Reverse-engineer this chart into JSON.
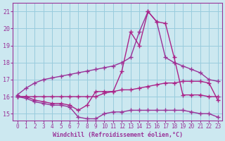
{
  "xlabel": "Windchill (Refroidissement éolien,°C)",
  "bg_color": "#cce8f0",
  "grid_color": "#99ccdd",
  "line_color": "#993399",
  "xmin": -0.5,
  "xmax": 23.5,
  "ymin": 14.6,
  "ymax": 21.5,
  "yticks": [
    15,
    16,
    17,
    18,
    19,
    20,
    21
  ],
  "xticks": [
    0,
    1,
    2,
    3,
    4,
    5,
    6,
    7,
    8,
    9,
    10,
    11,
    12,
    13,
    14,
    15,
    16,
    17,
    18,
    19,
    20,
    21,
    22,
    23
  ],
  "series": [
    {
      "x": [
        0,
        1,
        2,
        3,
        4,
        5,
        6,
        7,
        8,
        9,
        10,
        11,
        12,
        13,
        14,
        15,
        16,
        17,
        18,
        19,
        20,
        21,
        22,
        23
      ],
      "y": [
        16.1,
        16.5,
        16.8,
        17.0,
        17.1,
        17.2,
        17.3,
        17.4,
        17.5,
        17.6,
        17.7,
        17.8,
        18.0,
        18.3,
        19.8,
        21.0,
        20.4,
        18.3,
        18.0,
        17.8,
        17.6,
        17.4,
        17.0,
        16.9
      ],
      "color": "#993399",
      "marker": "+",
      "markersize": 5,
      "linewidth": 1.0
    },
    {
      "x": [
        0,
        1,
        2,
        3,
        4,
        5,
        6,
        7,
        8,
        9,
        10,
        11,
        12,
        13,
        14,
        15,
        16,
        17,
        18,
        19,
        20,
        21,
        22,
        23
      ],
      "y": [
        16.0,
        16.0,
        16.0,
        16.0,
        16.0,
        16.0,
        16.0,
        16.0,
        16.0,
        16.0,
        16.2,
        16.3,
        17.5,
        19.8,
        19.0,
        21.0,
        20.4,
        20.3,
        18.3,
        16.1,
        16.1,
        16.1,
        16.0,
        16.0
      ],
      "color": "#aa2288",
      "marker": "+",
      "markersize": 5,
      "linewidth": 1.0
    },
    {
      "x": [
        0,
        1,
        2,
        3,
        4,
        5,
        6,
        7,
        8,
        9,
        10,
        11,
        12,
        13,
        14,
        15,
        16,
        17,
        18,
        19,
        20,
        21,
        22,
        23
      ],
      "y": [
        16.0,
        16.0,
        15.8,
        15.7,
        15.6,
        15.6,
        15.5,
        15.2,
        15.5,
        16.3,
        16.3,
        16.3,
        16.4,
        16.4,
        16.5,
        16.6,
        16.7,
        16.8,
        16.8,
        16.9,
        16.9,
        16.9,
        16.8,
        15.8
      ],
      "color": "#aa2288",
      "marker": "+",
      "markersize": 5,
      "linewidth": 1.0
    },
    {
      "x": [
        0,
        1,
        2,
        3,
        4,
        5,
        6,
        7,
        8,
        9,
        10,
        11,
        12,
        13,
        14,
        15,
        16,
        17,
        18,
        19,
        20,
        21,
        22,
        23
      ],
      "y": [
        16.0,
        15.9,
        15.7,
        15.6,
        15.5,
        15.5,
        15.4,
        14.8,
        14.7,
        14.7,
        15.0,
        15.1,
        15.1,
        15.2,
        15.2,
        15.2,
        15.2,
        15.2,
        15.2,
        15.2,
        15.1,
        15.0,
        15.0,
        14.8
      ],
      "color": "#993399",
      "marker": "+",
      "markersize": 5,
      "linewidth": 1.0
    }
  ]
}
